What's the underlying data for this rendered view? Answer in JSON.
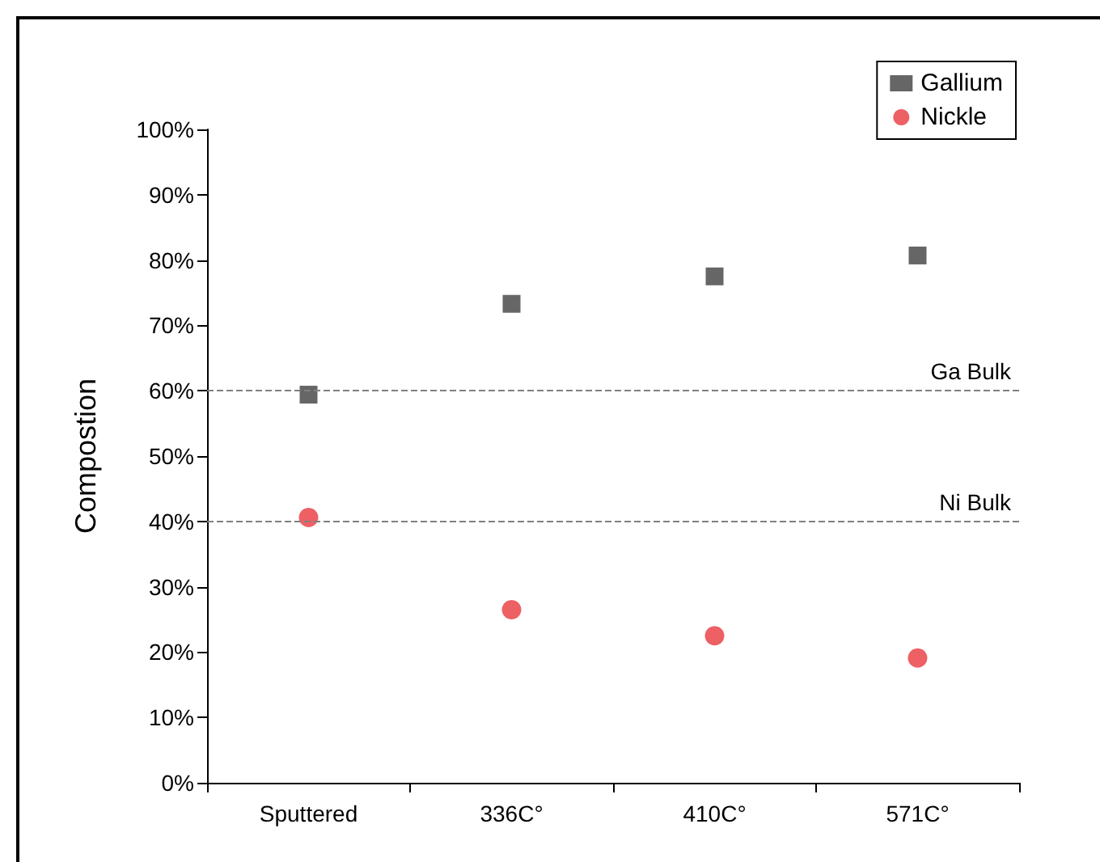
{
  "chart_data": {
    "type": "scatter",
    "ylabel": "Compostion",
    "categories": [
      "Sputtered",
      "336C°",
      "410C°",
      "571C°"
    ],
    "series": [
      {
        "name": "Gallium",
        "color": "#404040",
        "marker": "square",
        "values": [
          59.4,
          73.3,
          77.5,
          80.7
        ]
      },
      {
        "name": "Nickle",
        "color": "#e8383d",
        "marker": "circle",
        "values": [
          40.6,
          26.5,
          22.5,
          19.1
        ]
      }
    ],
    "ylim": [
      0,
      100
    ],
    "yticks": [
      {
        "value": 0,
        "label": "0%"
      },
      {
        "value": 10,
        "label": "10%"
      },
      {
        "value": 20,
        "label": "20%"
      },
      {
        "value": 30,
        "label": "30%"
      },
      {
        "value": 40,
        "label": "40%"
      },
      {
        "value": 50,
        "label": "50%"
      },
      {
        "value": 60,
        "label": "60%"
      },
      {
        "value": 70,
        "label": "70%"
      },
      {
        "value": 80,
        "label": "80%"
      },
      {
        "value": 90,
        "label": "90%"
      },
      {
        "value": 100,
        "label": "100%"
      }
    ],
    "ref_lines": [
      {
        "axis": "y",
        "value": 60,
        "label": "Ga Bulk",
        "color": "#808080",
        "line_style": "dashed"
      },
      {
        "axis": "y",
        "value": 40,
        "label": "Ni Bulk",
        "color": "#808080",
        "line_style": "dashed"
      }
    ],
    "legend": "top right",
    "grid": false
  }
}
